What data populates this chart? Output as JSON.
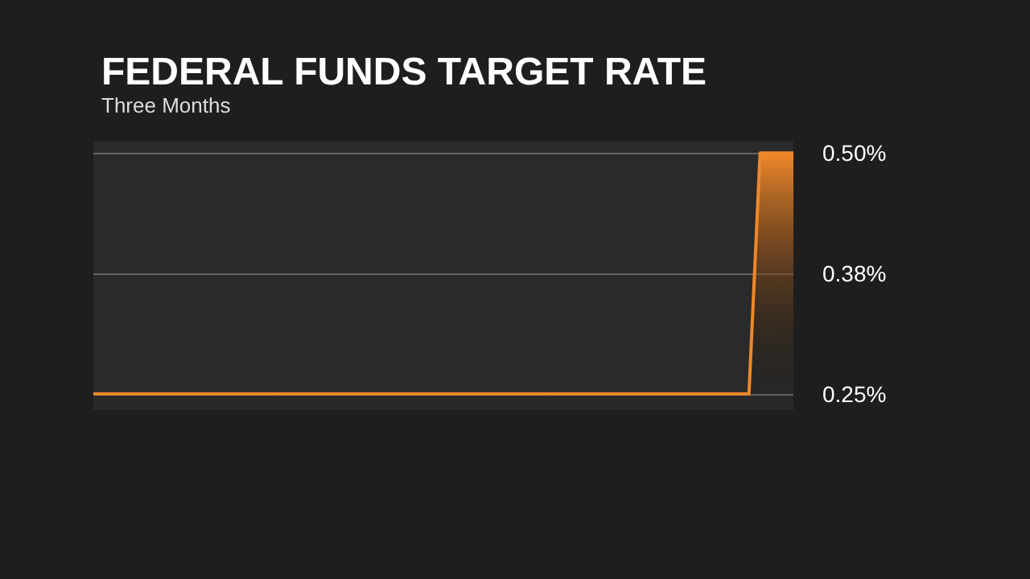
{
  "chart_data": {
    "type": "area",
    "title": "FEDERAL FUNDS TARGET RATE",
    "subtitle": "Three Months",
    "categories": [
      null,
      null,
      null,
      null,
      null,
      null,
      null,
      null,
      null,
      null,
      null,
      null,
      null,
      null,
      null,
      null,
      null,
      null,
      null,
      null,
      null,
      null,
      null,
      null,
      null,
      null,
      null,
      null,
      null,
      null,
      null,
      null,
      null,
      null,
      null,
      null,
      null,
      null,
      null,
      null,
      null,
      null,
      null,
      null,
      null,
      null,
      null,
      null,
      null,
      null,
      null,
      null,
      null,
      null,
      null,
      null,
      null,
      null,
      null,
      null,
      null,
      null,
      null,
      null
    ],
    "series": [
      {
        "color": "#f0882a",
        "values": [
          0.25,
          0.25,
          0.25,
          0.25,
          0.25,
          0.25,
          0.25,
          0.25,
          0.25,
          0.25,
          0.25,
          0.25,
          0.25,
          0.25,
          0.25,
          0.25,
          0.25,
          0.25,
          0.25,
          0.25,
          0.25,
          0.25,
          0.25,
          0.25,
          0.25,
          0.25,
          0.25,
          0.25,
          0.25,
          0.25,
          0.25,
          0.25,
          0.25,
          0.25,
          0.25,
          0.25,
          0.25,
          0.25,
          0.25,
          0.25,
          0.25,
          0.25,
          0.25,
          0.25,
          0.25,
          0.25,
          0.25,
          0.25,
          0.25,
          0.25,
          0.25,
          0.25,
          0.25,
          0.25,
          0.25,
          0.25,
          0.25,
          0.25,
          0.25,
          0.25,
          0.5,
          0.5,
          0.5,
          0.5
        ]
      }
    ],
    "ylim": [
      0.233,
      0.512
    ],
    "yticks": [
      {
        "value": 0.25,
        "label": "0.25%"
      },
      {
        "value": 0.375,
        "label": "0.38%"
      },
      {
        "value": 0.5,
        "label": "0.50%"
      }
    ],
    "grid": "y",
    "marker": "none",
    "line_style": "solid"
  }
}
